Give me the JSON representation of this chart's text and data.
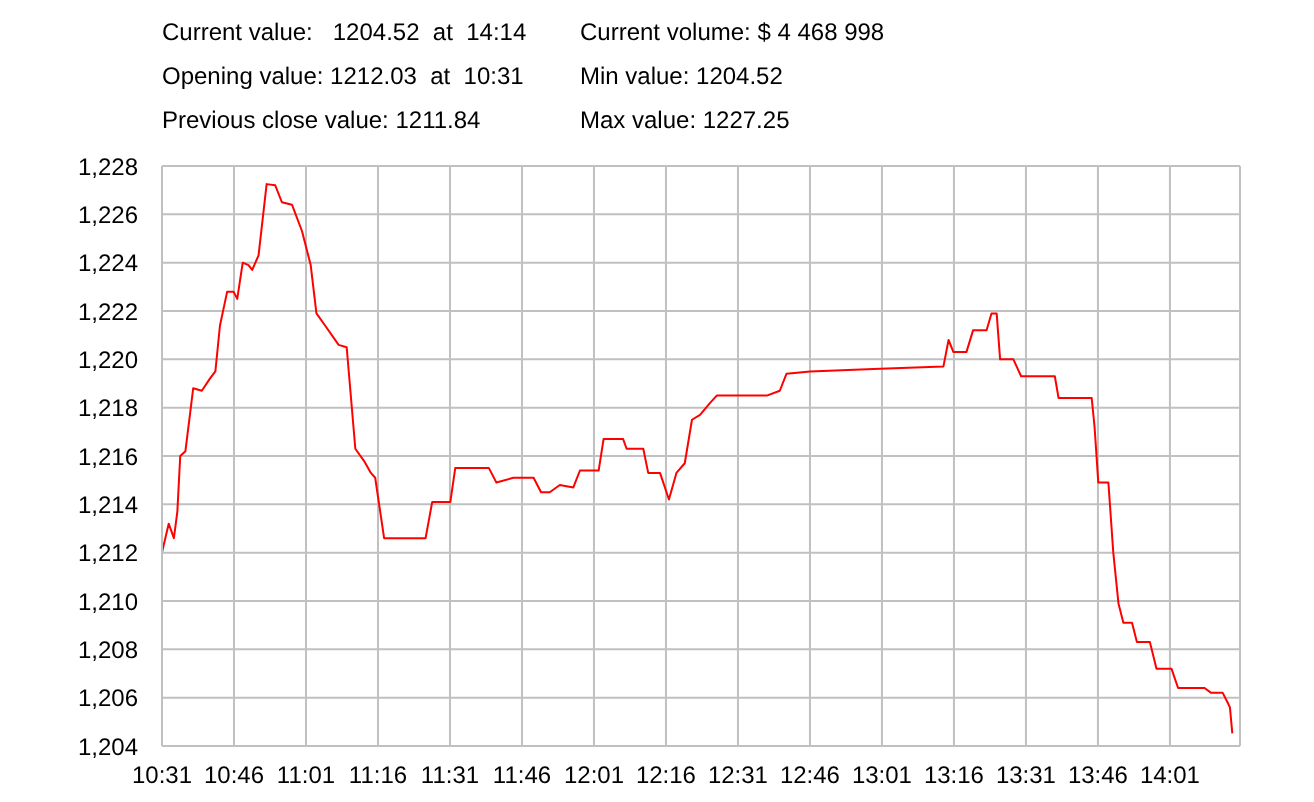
{
  "chart_data": {
    "type": "line",
    "annotations": [
      "Current value:   1204.52  at  14:14",
      "Current volume: $ 4 468 998",
      "Opening value: 1212.03  at  10:31",
      "Min value: 1204.52",
      "Previous close value: 1211.84",
      "Max value: 1227.25"
    ],
    "x": [
      10.517,
      10.54,
      10.558,
      10.57,
      10.58,
      10.598,
      10.625,
      10.655,
      10.683,
      10.702,
      10.718,
      10.743,
      10.765,
      10.778,
      10.797,
      10.817,
      10.83,
      10.852,
      10.88,
      10.91,
      10.933,
      10.968,
      11.003,
      11.033,
      11.053,
      11.083,
      11.13,
      11.158,
      11.188,
      11.218,
      11.242,
      11.257,
      11.288,
      11.432,
      11.455,
      11.518,
      11.535,
      11.652,
      11.678,
      11.737,
      11.807,
      11.833,
      11.863,
      11.898,
      11.945,
      11.968,
      12.033,
      12.05,
      12.118,
      12.13,
      12.188,
      12.205,
      12.246,
      12.277,
      12.303,
      12.332,
      12.357,
      12.385,
      12.42,
      12.443,
      12.617,
      12.662,
      12.685,
      12.767,
      12.987,
      13.23,
      13.248,
      13.265,
      13.31,
      13.333,
      13.38,
      13.397,
      13.415,
      13.427,
      13.473,
      13.5,
      13.617,
      13.63,
      13.745,
      13.755,
      13.768,
      13.803,
      13.82,
      13.838,
      13.855,
      13.885,
      13.902,
      13.947,
      13.97,
      14.022,
      14.045,
      14.137,
      14.16,
      14.2,
      14.217,
      14.225,
      14.2333
    ],
    "series": [
      {
        "color": "#ff0000",
        "values": [
          1212.03,
          1213.2,
          1212.6,
          1213.7,
          1216.0,
          1216.2,
          1218.8,
          1218.7,
          1219.2,
          1219.5,
          1221.4,
          1222.8,
          1222.8,
          1222.5,
          1224.0,
          1223.9,
          1223.7,
          1224.3,
          1227.25,
          1227.2,
          1226.5,
          1226.4,
          1225.3,
          1223.9,
          1221.9,
          1221.4,
          1220.6,
          1220.5,
          1216.3,
          1215.8,
          1215.3,
          1215.1,
          1212.6,
          1212.6,
          1214.1,
          1214.1,
          1215.5,
          1215.5,
          1214.9,
          1215.1,
          1215.1,
          1214.5,
          1214.5,
          1214.8,
          1214.7,
          1215.4,
          1215.4,
          1216.7,
          1216.7,
          1216.3,
          1216.3,
          1215.3,
          1215.3,
          1214.2,
          1215.3,
          1215.7,
          1217.5,
          1217.7,
          1218.2,
          1218.5,
          1218.5,
          1218.7,
          1219.4,
          1219.5,
          1219.6,
          1219.7,
          1220.8,
          1220.3,
          1220.3,
          1221.2,
          1221.2,
          1221.9,
          1221.9,
          1220.0,
          1220.0,
          1219.3,
          1219.3,
          1218.4,
          1218.4,
          1217.2,
          1214.9,
          1214.9,
          1212.0,
          1209.9,
          1209.1,
          1209.1,
          1208.3,
          1208.3,
          1207.2,
          1207.2,
          1206.4,
          1206.4,
          1206.2,
          1206.2,
          1205.8,
          1205.6,
          1204.52
        ]
      }
    ],
    "xlim": [
      10.5167,
      14.26
    ],
    "xticks": [
      {
        "value": 10.5167,
        "label": "10:31"
      },
      {
        "value": 10.7667,
        "label": "10:46"
      },
      {
        "value": 11.0167,
        "label": "11:01"
      },
      {
        "value": 11.2667,
        "label": "11:16"
      },
      {
        "value": 11.5167,
        "label": "11:31"
      },
      {
        "value": 11.7667,
        "label": "11:46"
      },
      {
        "value": 12.0167,
        "label": "12:01"
      },
      {
        "value": 12.2667,
        "label": "12:16"
      },
      {
        "value": 12.5167,
        "label": "12:31"
      },
      {
        "value": 12.7667,
        "label": "12:46"
      },
      {
        "value": 13.0167,
        "label": "13:01"
      },
      {
        "value": 13.2667,
        "label": "13:16"
      },
      {
        "value": 13.5167,
        "label": "13:31"
      },
      {
        "value": 13.7667,
        "label": "13:46"
      },
      {
        "value": 14.0167,
        "label": "14:01"
      }
    ],
    "ylim": [
      1204,
      1228
    ],
    "yticks": [
      {
        "value": 1204,
        "label": "1,204"
      },
      {
        "value": 1206,
        "label": "1,206"
      },
      {
        "value": 1208,
        "label": "1,208"
      },
      {
        "value": 1210,
        "label": "1,210"
      },
      {
        "value": 1212,
        "label": "1,212"
      },
      {
        "value": 1214,
        "label": "1,214"
      },
      {
        "value": 1216,
        "label": "1,216"
      },
      {
        "value": 1218,
        "label": "1,218"
      },
      {
        "value": 1220,
        "label": "1,220"
      },
      {
        "value": 1222,
        "label": "1,222"
      },
      {
        "value": 1224,
        "label": "1,224"
      },
      {
        "value": 1226,
        "label": "1,226"
      },
      {
        "value": 1228,
        "label": "1,228"
      }
    ],
    "grid": true,
    "marker": "none",
    "line_style": "solid"
  }
}
